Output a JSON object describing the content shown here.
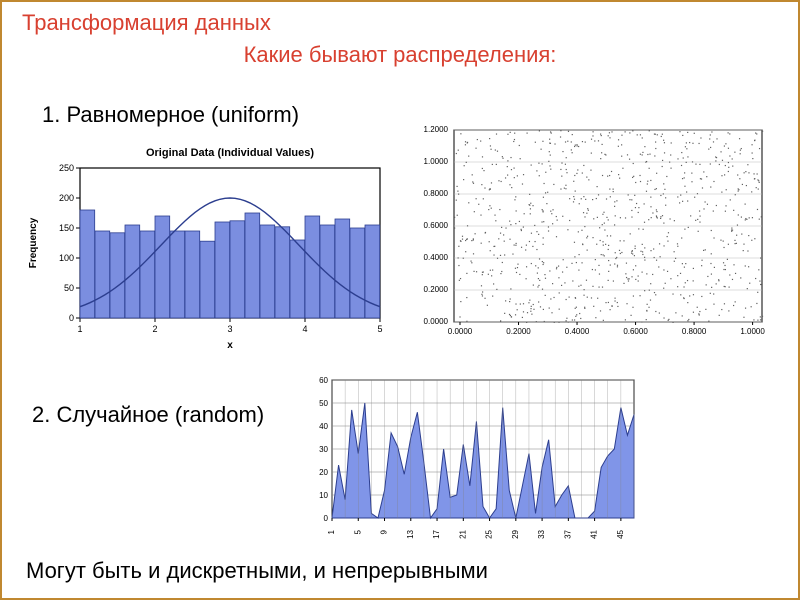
{
  "title": "Трансформация данных",
  "subtitle": "Какие бывают распределения:",
  "section1": "1. Равномерное (uniform)",
  "section2": "2. Случайное (random)",
  "footer": "Могут быть и дискретными, и непрерывными",
  "histogram": {
    "type": "histogram",
    "title": "Original Data (Individual Values)",
    "title_fontsize": 11,
    "ylabel": "Frequency",
    "xlabel": "x",
    "label_fontsize": 10,
    "bar_color": "#7b8ee0",
    "bar_border": "#2c3e8f",
    "curve_color": "#2c3e8f",
    "axis_color": "#000000",
    "background": "#ffffff",
    "ylim": [
      0,
      250
    ],
    "ytick_step": 50,
    "xticks": [
      1,
      2,
      3,
      4,
      5
    ],
    "bars": [
      180,
      145,
      142,
      155,
      145,
      170,
      145,
      145,
      128,
      160,
      162,
      175,
      155,
      152,
      130,
      170,
      155,
      165,
      150,
      155
    ],
    "curve_peak": 200
  },
  "scatter": {
    "type": "scatter",
    "point_color": "#606060",
    "grid_color": "#bbbbbb",
    "axis_color": "#000000",
    "background": "#ffffff",
    "ylim": [
      0,
      1.2
    ],
    "yticks": [
      "0.0000",
      "0.2000",
      "0.4000",
      "0.6000",
      "0.8000",
      "1.0000",
      "1.2000"
    ],
    "xticks": [
      "0.0000",
      "0.2000",
      "0.4000",
      "0.6000",
      "0.8000",
      "1.0000"
    ],
    "label_fontsize": 8,
    "n_points": 900
  },
  "area": {
    "type": "area",
    "fill_color": "#8095e8",
    "line_color": "#2c3e8f",
    "grid_color": "#808080",
    "background": "#ffffff",
    "axis_color": "#000000",
    "ylim": [
      0,
      60
    ],
    "ytick_step": 10,
    "xticks": [
      1,
      5,
      9,
      13,
      17,
      21,
      25,
      29,
      33,
      37,
      41,
      45
    ],
    "label_fontsize": 8,
    "values": [
      0,
      23,
      8,
      47,
      28,
      50,
      2,
      0,
      12,
      37,
      31,
      19,
      35,
      46,
      24,
      0,
      4,
      30,
      9,
      10,
      32,
      14,
      42,
      5,
      0,
      4,
      48,
      12,
      0,
      14,
      28,
      2,
      22,
      34,
      5,
      10,
      14,
      0,
      0,
      0,
      3,
      22,
      27,
      30,
      48,
      36,
      45
    ]
  }
}
